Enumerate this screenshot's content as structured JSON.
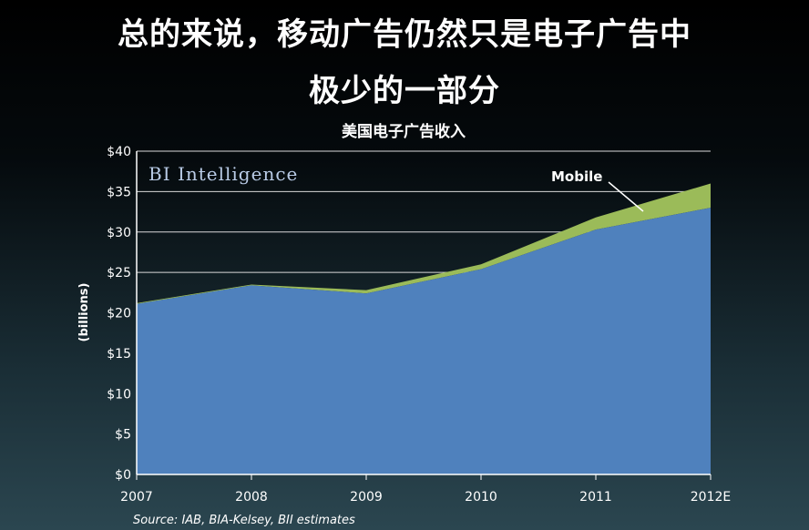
{
  "headline": {
    "line1": "总的来说，移动广告仍然只是电子广告中",
    "line2": "极少的一部分"
  },
  "brand": "BI Intelligence",
  "source": "Source:  IAB, BIA-Kelsey, BII estimates",
  "colors": {
    "desktop": "#4f81bd",
    "mobile": "#9bbb59",
    "grid": "#d9d9d9"
  },
  "chart_data": {
    "type": "area",
    "title": "美国电子广告收入",
    "ylabel": "(billions)",
    "xlabel": "",
    "stacked": true,
    "categories": [
      "2007",
      "2008",
      "2009",
      "2010",
      "2011",
      "2012E"
    ],
    "ylim": [
      0,
      40
    ],
    "yticks": [
      0,
      5,
      10,
      15,
      20,
      25,
      30,
      35,
      40
    ],
    "ytick_labels": [
      "$0",
      "$5",
      "$10",
      "$15",
      "$20",
      "$25",
      "$30",
      "$35",
      "$40"
    ],
    "grid": true,
    "series": [
      {
        "values": [
          21.1,
          23.4,
          22.4,
          25.4,
          30.3,
          33.0
        ]
      },
      {
        "name": "Mobile",
        "values": [
          0.1,
          0.1,
          0.4,
          0.6,
          1.5,
          3.0
        ]
      }
    ],
    "annotations": [
      {
        "text": "Mobile"
      }
    ]
  }
}
